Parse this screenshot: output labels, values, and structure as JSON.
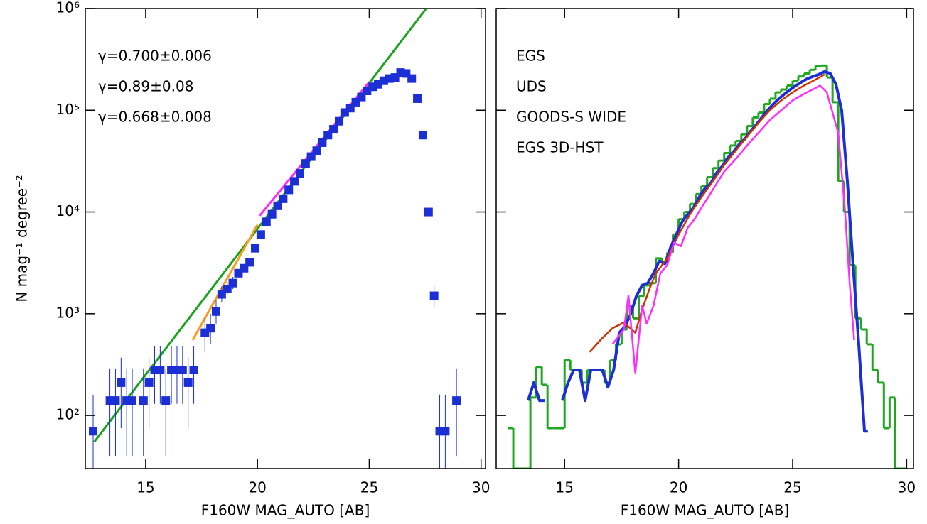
{
  "chart_data": [
    {
      "type": "scatter",
      "xlabel": "F160W MAG_AUTO [AB]",
      "ylabel": "N  mag⁻¹  degree⁻²",
      "xlim": [
        12.3,
        30.2
      ],
      "ylim": [
        30,
        1000000
      ],
      "log_y": true,
      "xticks": [
        15,
        20,
        25,
        30
      ],
      "yticks": [
        {
          "value": 100,
          "label": "10²"
        },
        {
          "value": 1000,
          "label": "10³"
        },
        {
          "value": 10000,
          "label": "10⁴"
        },
        {
          "value": 100000,
          "label": "10⁵"
        },
        {
          "value": 1000000,
          "label": "10⁶"
        }
      ],
      "color": "#1c2fd4",
      "x": [
        12.65,
        13.4,
        13.65,
        13.9,
        14.15,
        14.4,
        14.9,
        15.15,
        15.4,
        15.65,
        15.9,
        16.15,
        16.4,
        16.65,
        16.9,
        17.15,
        17.65,
        17.9,
        18.15,
        18.4,
        18.65,
        18.9,
        19.15,
        19.4,
        19.65,
        19.9,
        20.15,
        20.4,
        20.65,
        20.9,
        21.15,
        21.4,
        21.65,
        21.9,
        22.15,
        22.4,
        22.65,
        22.9,
        23.15,
        23.4,
        23.65,
        23.9,
        24.15,
        24.4,
        24.65,
        24.9,
        25.15,
        25.4,
        25.65,
        25.9,
        26.15,
        26.4,
        26.65,
        26.9,
        27.15,
        27.4,
        27.65,
        27.9,
        28.15,
        28.4,
        28.9
      ],
      "values": [
        70,
        140,
        140,
        210,
        140,
        140,
        140,
        210,
        280,
        280,
        140,
        280,
        280,
        280,
        210,
        280,
        650,
        720,
        1050,
        1550,
        1750,
        2000,
        2500,
        2800,
        3200,
        4400,
        6000,
        8000,
        9500,
        11500,
        13500,
        16500,
        20000,
        24000,
        30000,
        35000,
        40000,
        48000,
        57000,
        65000,
        78000,
        95000,
        105000,
        120000,
        135000,
        155000,
        170000,
        180000,
        195000,
        205000,
        210000,
        235000,
        230000,
        205000,
        130000,
        57000,
        10000,
        1500,
        70,
        70,
        140
      ],
      "y_low": [
        30,
        40,
        40,
        75,
        40,
        40,
        40,
        75,
        130,
        130,
        40,
        130,
        130,
        130,
        75,
        130,
        420,
        500,
        800,
        1300,
        1500,
        1750,
        null,
        null,
        null,
        null,
        null,
        null,
        null,
        null,
        null,
        null,
        null,
        null,
        null,
        null,
        null,
        null,
        null,
        null,
        null,
        null,
        null,
        null,
        null,
        null,
        null,
        null,
        null,
        null,
        null,
        null,
        null,
        null,
        null,
        null,
        null,
        1150,
        30,
        30,
        40
      ],
      "y_high": [
        160,
        290,
        290,
        370,
        290,
        290,
        290,
        370,
        480,
        480,
        290,
        480,
        480,
        480,
        370,
        480,
        920,
        1000,
        1350,
        1850,
        2050,
        2300,
        null,
        null,
        null,
        null,
        null,
        null,
        null,
        null,
        null,
        null,
        null,
        null,
        null,
        null,
        null,
        null,
        null,
        null,
        null,
        null,
        null,
        null,
        null,
        null,
        null,
        null,
        null,
        null,
        null,
        null,
        null,
        null,
        null,
        null,
        null,
        1850,
        160,
        160,
        290
      ],
      "fits": [
        {
          "color": "#1aa31a",
          "x": [
            12.7,
            27.55
          ],
          "values": [
            55,
            1000000
          ]
        },
        {
          "color": "#ff9a1a",
          "x": [
            17.1,
            20
          ],
          "values": [
            550,
            7500
          ]
        },
        {
          "color": "#ff2bff",
          "x": [
            20.1,
            25
          ],
          "values": [
            9200,
            190000
          ]
        }
      ],
      "annotations": [
        {
          "text": "γ=0.700±0.006",
          "color": "#1aa31a"
        },
        {
          "text": "γ=0.89±0.08",
          "color": "#ff9a1a"
        },
        {
          "text": "γ=0.668±0.008",
          "color": "#ff2bff"
        }
      ]
    },
    {
      "type": "line",
      "xlabel": "F160W MAG_AUTO [AB]",
      "xlim": [
        12,
        30.3
      ],
      "ylim": [
        30,
        1000000
      ],
      "log_y": true,
      "xticks": [
        15,
        20,
        25,
        30
      ],
      "yticks": [
        100,
        1000,
        10000,
        100000,
        1000000
      ],
      "ytick_labels": false,
      "series": [
        {
          "name": "EGS",
          "color": "#1c2fd4",
          "width": 4,
          "x": [
            13.4,
            13.65,
            13.9,
            14.15,
            14.5,
            14.9,
            15.15,
            15.4,
            15.65,
            15.9,
            16.15,
            16.4,
            16.65,
            16.9,
            17.15,
            17.4,
            17.65,
            17.9,
            18.15,
            18.4,
            18.65,
            18.9,
            19.15,
            19.4,
            19.65,
            19.9,
            20.15,
            20.4,
            20.65,
            20.9,
            21.15,
            21.4,
            21.65,
            21.9,
            22.15,
            22.4,
            22.65,
            22.9,
            23.15,
            23.4,
            23.65,
            23.9,
            24.15,
            24.4,
            24.65,
            24.9,
            25.15,
            25.4,
            25.65,
            25.9,
            26.15,
            26.4,
            26.65,
            26.9,
            27.15,
            27.4,
            27.65,
            27.9,
            28.15,
            28.3
          ],
          "values": [
            140,
            210,
            140,
            140,
            null,
            140,
            210,
            280,
            280,
            140,
            280,
            280,
            280,
            190,
            280,
            650,
            750,
            1000,
            1500,
            1900,
            2000,
            2500,
            3300,
            3100,
            4500,
            6000,
            8000,
            9500,
            11000,
            14000,
            17000,
            19000,
            24000,
            28000,
            34000,
            39000,
            46000,
            52000,
            62000,
            72000,
            85000,
            100000,
            115000,
            130000,
            145000,
            160000,
            175000,
            190000,
            205000,
            215000,
            225000,
            240000,
            230000,
            180000,
            100000,
            20000,
            3000,
            500,
            70,
            70
          ]
        },
        {
          "name": "UDS",
          "color": "#cc3300",
          "width": 2.5,
          "x": [
            16.1,
            16.6,
            17.1,
            17.6,
            18.1,
            18.4,
            18.7,
            19,
            19.5,
            20,
            20.5,
            21,
            21.5,
            22,
            22.5,
            23,
            23.5,
            24,
            24.5,
            25,
            25.5,
            26,
            26.4
          ],
          "values": [
            420,
            560,
            720,
            820,
            650,
            1100,
            1700,
            2500,
            3500,
            6000,
            9500,
            14000,
            20000,
            29000,
            40000,
            55000,
            75000,
            100000,
            125000,
            150000,
            175000,
            200000,
            225000
          ]
        },
        {
          "name": "GOODS-S WIDE",
          "color": "#ff2bff",
          "width": 2.5,
          "x": [
            17.1,
            17.6,
            17.8,
            18.1,
            18.4,
            18.6,
            18.9,
            19.2,
            19.5,
            19.8,
            20.1,
            20.4,
            20.7,
            21,
            21.3,
            21.6,
            22,
            22.5,
            23,
            23.5,
            24,
            24.5,
            25,
            25.5,
            26,
            26.2,
            26.5,
            27,
            27.3,
            27.5,
            27.7
          ],
          "values": [
            500,
            700,
            1500,
            260,
            1200,
            800,
            1200,
            2500,
            3000,
            5000,
            4600,
            7000,
            8500,
            11000,
            14000,
            18000,
            25000,
            33000,
            45000,
            60000,
            80000,
            100000,
            125000,
            145000,
            165000,
            175000,
            150000,
            60000,
            10000,
            2000,
            550
          ]
        }
      ],
      "histogram": {
        "name": "EGS 3D-HST",
        "color": "#1fa81f",
        "bins": [
          12.5,
          12.75,
          13,
          13.25,
          13.5,
          13.75,
          14,
          14.25,
          14.5,
          14.75,
          15,
          15.25,
          15.5,
          15.75,
          16,
          16.25,
          16.5,
          16.75,
          17,
          17.25,
          17.5,
          17.75,
          18,
          18.25,
          18.5,
          18.75,
          19,
          19.25,
          19.5,
          19.75,
          20,
          20.25,
          20.5,
          20.75,
          21,
          21.25,
          21.5,
          21.75,
          22,
          22.25,
          22.5,
          22.75,
          23,
          23.25,
          23.5,
          23.75,
          24,
          24.25,
          24.5,
          24.75,
          25,
          25.25,
          25.5,
          25.75,
          26,
          26.25,
          26.5,
          26.75,
          27,
          27.25,
          27.5,
          27.75,
          28,
          28.25,
          28.5,
          28.75,
          29,
          29.25,
          29.5,
          29.75,
          30
        ],
        "counts": [
          75,
          30,
          30,
          30,
          150,
          300,
          200,
          75,
          75,
          75,
          350,
          280,
          280,
          210,
          280,
          280,
          280,
          210,
          350,
          500,
          700,
          1200,
          900,
          1500,
          1900,
          2000,
          3500,
          3200,
          4000,
          6000,
          8500,
          10000,
          12000,
          15000,
          18000,
          22000,
          27000,
          32000,
          38000,
          45000,
          50000,
          58000,
          70000,
          85000,
          95000,
          115000,
          130000,
          150000,
          160000,
          175000,
          195000,
          215000,
          230000,
          250000,
          270000,
          275000,
          210000,
          120000,
          20000,
          10000,
          3000,
          900,
          700,
          500,
          280,
          210,
          75,
          150,
          30,
          30
        ]
      }
    }
  ]
}
